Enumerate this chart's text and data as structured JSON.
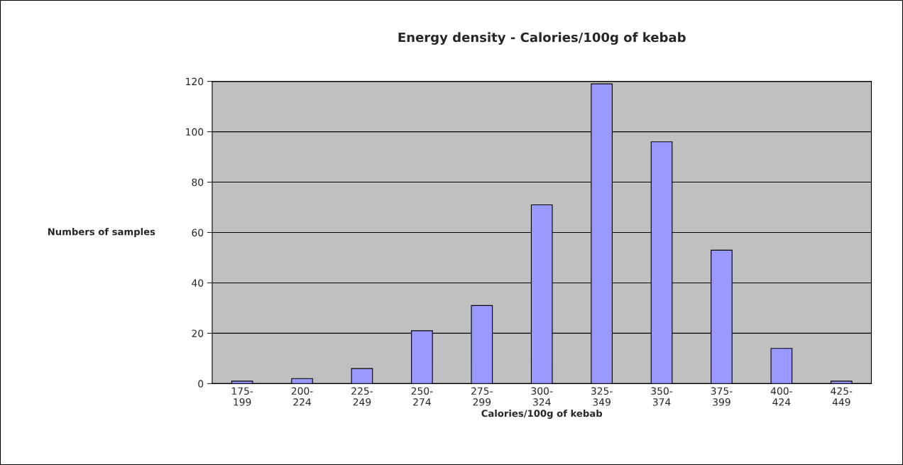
{
  "chart_data": {
    "type": "bar",
    "title": "Energy density - Calories/100g of kebab",
    "xlabel": "Calories/100g of kebab",
    "ylabel": "Numbers of samples",
    "categories": [
      "175-\n199",
      "200-\n224",
      "225-\n249",
      "250-\n274",
      "275-\n299",
      "300-\n324",
      "325-\n349",
      "350-\n374",
      "375-\n399",
      "400-\n424",
      "425-\n449"
    ],
    "values": [
      1,
      2,
      6,
      21,
      31,
      71,
      119,
      96,
      53,
      14,
      1
    ],
    "color": "#9999ff",
    "ylim": [
      0,
      120
    ],
    "yticks": [
      0,
      20,
      40,
      60,
      80,
      100,
      120
    ],
    "grid": "y"
  }
}
